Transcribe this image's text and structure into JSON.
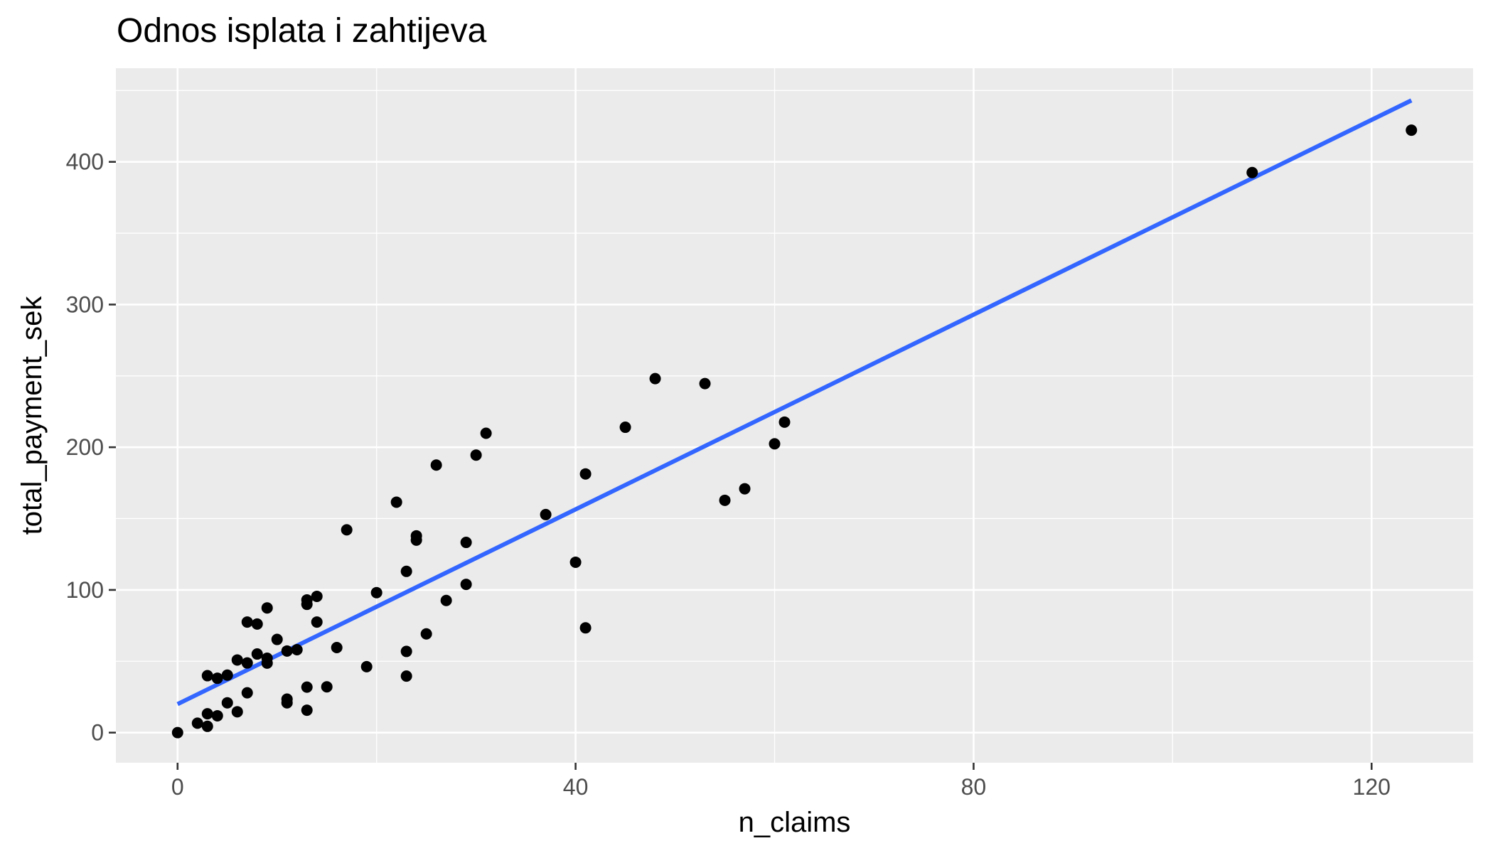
{
  "chart_data": {
    "type": "scatter",
    "title": "Odnos isplata i zahtijeva",
    "xlabel": "n_claims",
    "ylabel": "total_payment_sek",
    "xlim": [
      -6.2,
      130.2
    ],
    "ylim": [
      -21.1,
      465.6
    ],
    "x_ticks": [
      0,
      40,
      80,
      120
    ],
    "y_ticks": [
      0,
      100,
      200,
      300,
      400
    ],
    "x_tick_labels": [
      "0",
      "40",
      "80",
      "120"
    ],
    "y_tick_labels": [
      "0",
      "100",
      "200",
      "300",
      "400"
    ],
    "grid": true,
    "legend": "none",
    "colors": {
      "panel_background": "#EBEBEB",
      "grid_line": "#FFFFFF",
      "points": "#000000",
      "trend_line": "#3366FF",
      "tick_label": "#4D4D4D",
      "tick_mark": "#333333"
    },
    "series": [
      {
        "points": [
          [
            0,
            0
          ],
          [
            2,
            6.6
          ],
          [
            3,
            4.4
          ],
          [
            3,
            13.2
          ],
          [
            3,
            39.9
          ],
          [
            4,
            11.8
          ],
          [
            4,
            38.1
          ],
          [
            5,
            20.9
          ],
          [
            5,
            40.3
          ],
          [
            6,
            14.6
          ],
          [
            6,
            50.9
          ],
          [
            7,
            27.9
          ],
          [
            7,
            48.8
          ],
          [
            7,
            77.5
          ],
          [
            8,
            55.1
          ],
          [
            8,
            76.1
          ],
          [
            9,
            48.7
          ],
          [
            9,
            52.1
          ],
          [
            9,
            87.4
          ],
          [
            10,
            65.3
          ],
          [
            11,
            20.9
          ],
          [
            11,
            23.5
          ],
          [
            11,
            57.2
          ],
          [
            12,
            58.1
          ],
          [
            13,
            15.7
          ],
          [
            13,
            31.9
          ],
          [
            13,
            89.9
          ],
          [
            13,
            93.0
          ],
          [
            14,
            77.5
          ],
          [
            14,
            95.5
          ],
          [
            15,
            32.1
          ],
          [
            16,
            59.6
          ],
          [
            17,
            142.1
          ],
          [
            19,
            46.2
          ],
          [
            20,
            98.1
          ],
          [
            22,
            161.5
          ],
          [
            23,
            39.6
          ],
          [
            23,
            56.9
          ],
          [
            23,
            113.0
          ],
          [
            24,
            134.9
          ],
          [
            24,
            137.9
          ],
          [
            25,
            69.2
          ],
          [
            26,
            187.5
          ],
          [
            27,
            92.6
          ],
          [
            29,
            103.9
          ],
          [
            29,
            133.3
          ],
          [
            30,
            194.5
          ],
          [
            31,
            209.8
          ],
          [
            37,
            152.8
          ],
          [
            40,
            119.4
          ],
          [
            41,
            73.4
          ],
          [
            41,
            181.3
          ],
          [
            45,
            214.0
          ],
          [
            48,
            248.1
          ],
          [
            53,
            244.6
          ],
          [
            55,
            162.8
          ],
          [
            57,
            170.9
          ],
          [
            60,
            202.4
          ],
          [
            61,
            217.6
          ],
          [
            108,
            392.5
          ],
          [
            124,
            422.2
          ]
        ]
      }
    ],
    "trend_line": {
      "method": "linear",
      "x": [
        0,
        124
      ],
      "y": [
        19.99,
        443.06
      ]
    }
  }
}
